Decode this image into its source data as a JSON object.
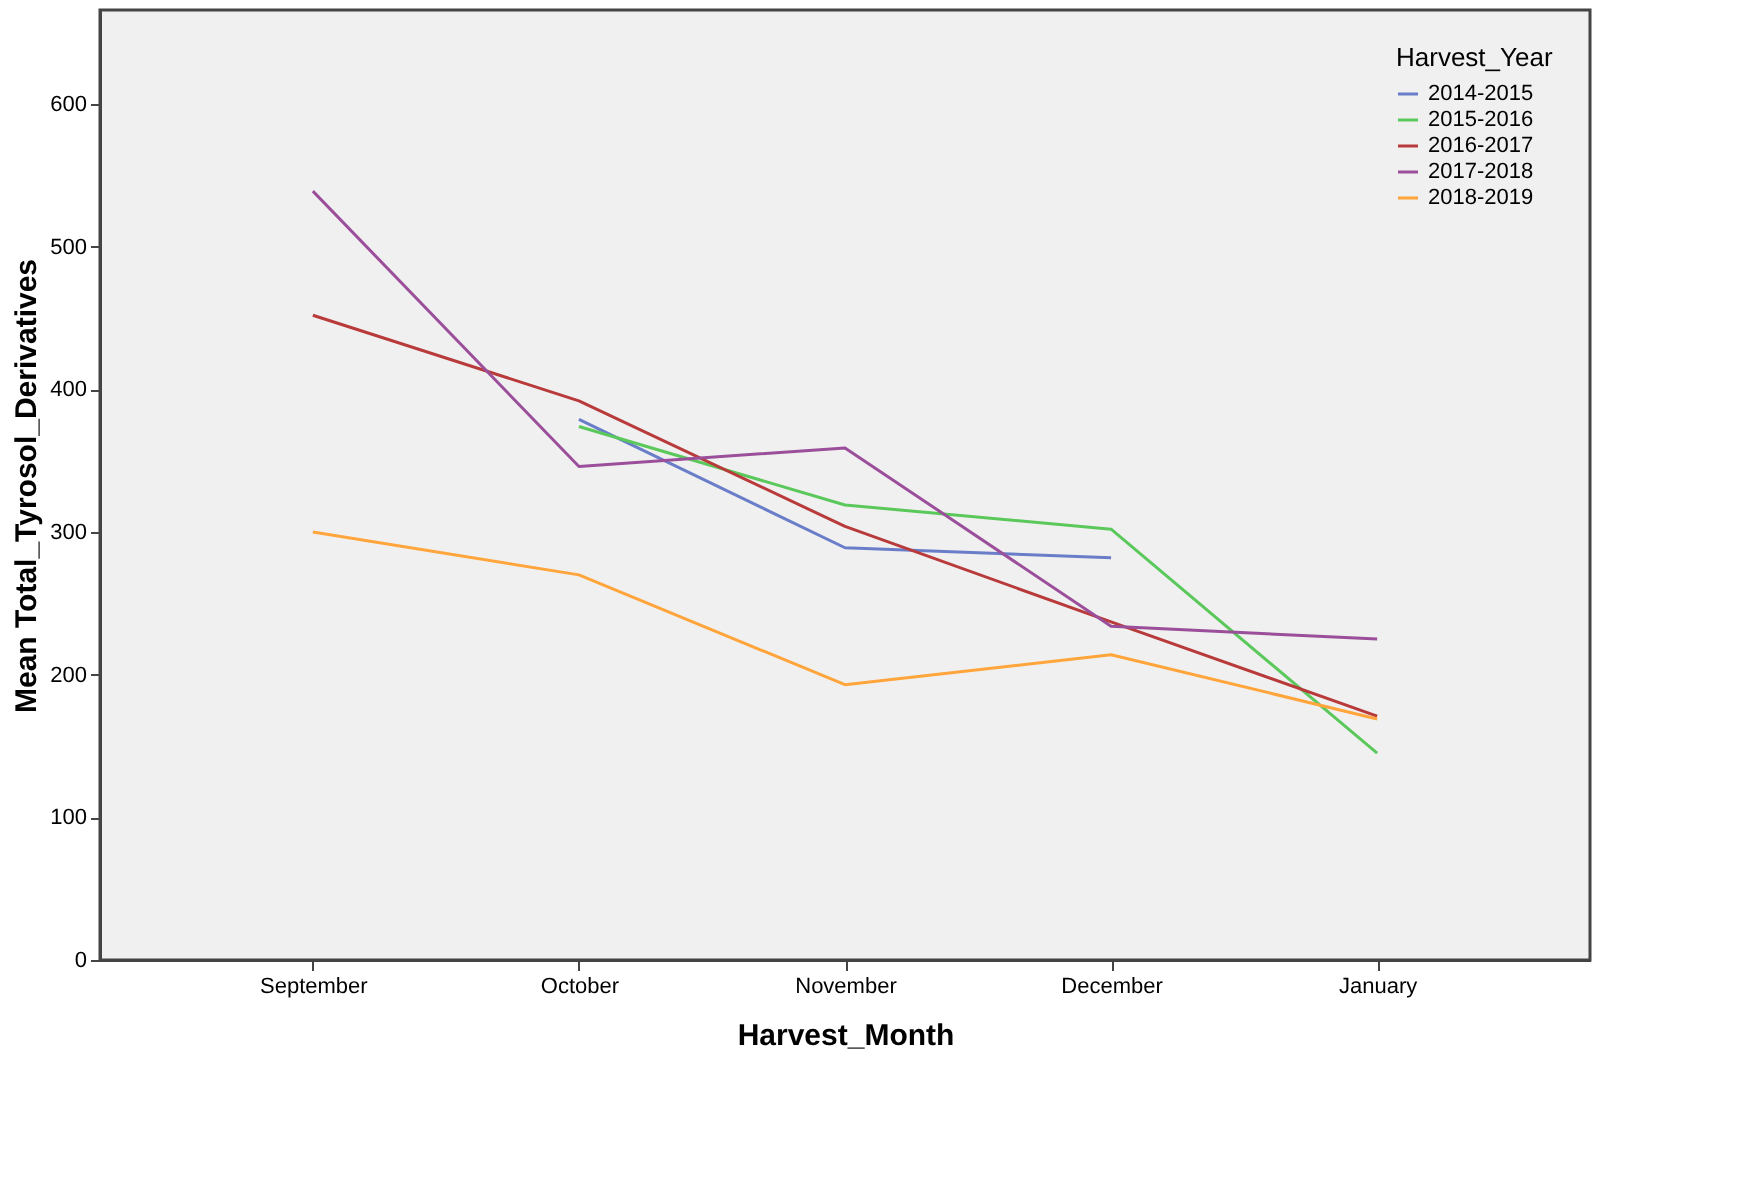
{
  "chart_data": {
    "type": "line",
    "xlabel": "Harvest_Month",
    "ylabel": "Mean Total_Tyrosol_Derivatives",
    "legend_title": "Harvest_Year",
    "legend": "top right",
    "grid": false,
    "marker": "none",
    "line_style": "solid",
    "categories": [
      "September",
      "October",
      "November",
      "December",
      "January"
    ],
    "ylim": [
      0,
      666
    ],
    "yticks": [
      0,
      100,
      200,
      300,
      400,
      500,
      600
    ],
    "series": [
      {
        "name": "2014-2015",
        "color": "#6a7dc9",
        "values": [
          null,
          379,
          289,
          282,
          null
        ]
      },
      {
        "name": "2015-2016",
        "color": "#5ac85a",
        "values": [
          null,
          374,
          319,
          302,
          145
        ]
      },
      {
        "name": "2016-2017",
        "color": "#b83a3a",
        "values": [
          452,
          392,
          304,
          237,
          171
        ]
      },
      {
        "name": "2017-2018",
        "color": "#9b4f9b",
        "values": [
          539,
          346,
          359,
          234,
          225
        ]
      },
      {
        "name": "2018-2019",
        "color": "#ffa53b",
        "values": [
          300,
          270,
          193,
          214,
          169
        ]
      }
    ]
  }
}
